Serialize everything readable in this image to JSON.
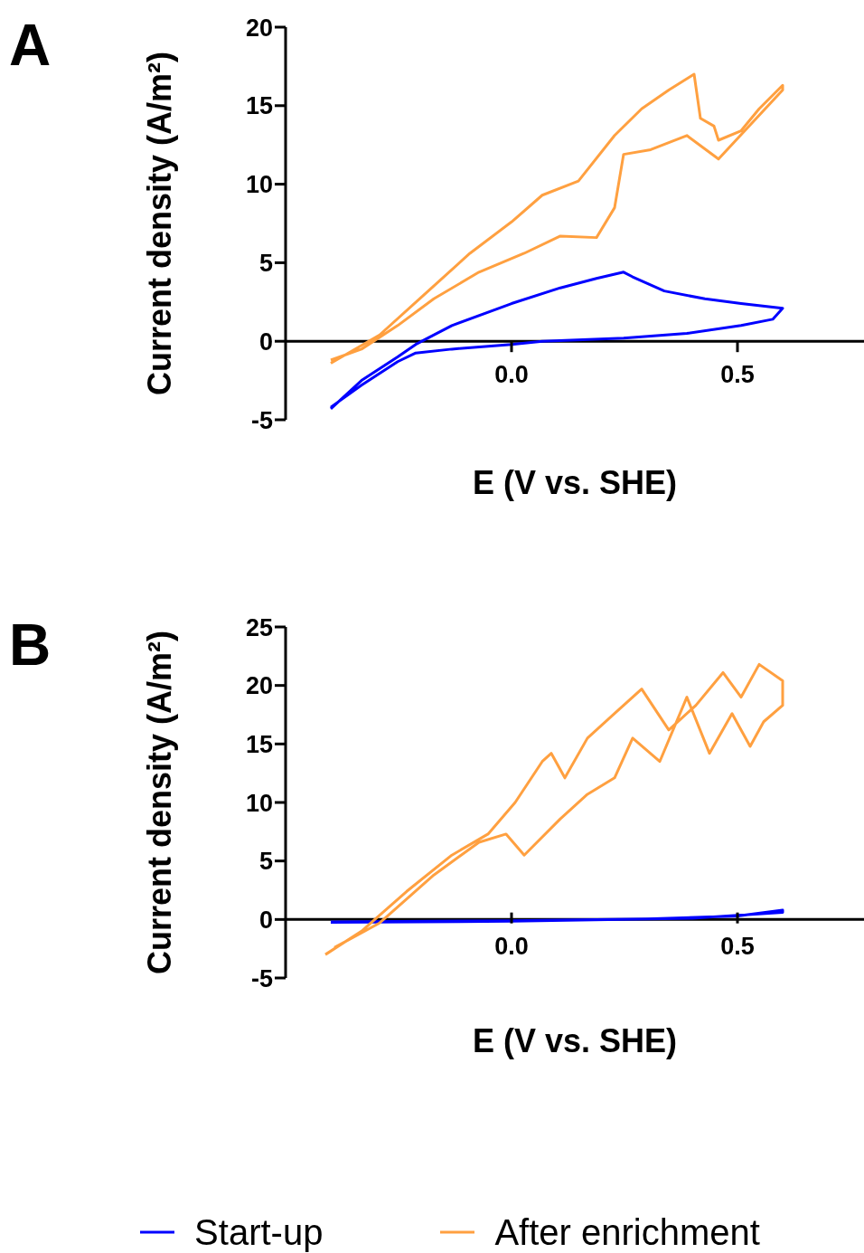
{
  "chart_data": [
    {
      "type": "line",
      "title": "A",
      "xlabel": "E (V vs. SHE)",
      "ylabel": "Current density (A/m²)",
      "xlim": [
        -0.5,
        0.78
      ],
      "xticks": [
        {
          "value": 0,
          "label": "0.0"
        },
        0.5
      ],
      "ylim": [
        -5,
        20
      ],
      "yticks": [
        -5,
        0,
        5,
        10,
        15,
        20
      ],
      "grid": false,
      "legend": false,
      "marker": "none",
      "series": [
        {
          "color": "#0000ff",
          "x": [
            -0.4,
            -0.332,
            -0.252,
            -0.212,
            -0.132,
            0,
            0.108,
            0.188,
            0.248,
            0.268,
            0.338,
            0.428,
            0.508,
            0.6,
            0.578,
            0.508,
            0.388,
            0.248,
            0.068,
            0,
            -0.132,
            -0.212,
            -0.252,
            -0.332,
            -0.4
          ],
          "values": [
            -4.3,
            -2.5,
            -1.0,
            -0.2,
            1.0,
            2.4,
            3.4,
            4.0,
            4.4,
            4.1,
            3.2,
            2.7,
            2.4,
            2.1,
            1.4,
            1.0,
            0.5,
            0.2,
            0,
            -0.2,
            -0.5,
            -0.75,
            -1.3,
            -2.8,
            -4.2
          ]
        },
        {
          "color": "#ffa040",
          "x": [
            -0.4,
            -0.292,
            -0.192,
            -0.092,
            0,
            0.068,
            0.148,
            0.228,
            0.288,
            0.348,
            0.404,
            0.418,
            0.448,
            0.458,
            0.508,
            0.548,
            0.6,
            0.6,
            0.458,
            0.388,
            0.308,
            0.248,
            0.228,
            0.188,
            0.108,
            0.028,
            -0.072,
            -0.172,
            -0.252,
            -0.332,
            -0.4
          ],
          "values": [
            -1.4,
            0.4,
            3.0,
            5.6,
            7.6,
            9.3,
            10.2,
            13.1,
            14.8,
            16.0,
            17.0,
            14.2,
            13.7,
            12.8,
            13.4,
            14.8,
            16.3,
            16.0,
            11.6,
            13.1,
            12.2,
            11.9,
            8.5,
            6.6,
            6.7,
            5.6,
            4.4,
            2.7,
            1.0,
            -0.5,
            -1.2
          ]
        }
      ]
    },
    {
      "type": "line",
      "title": "B",
      "xlabel": "E (V vs. SHE)",
      "ylabel": "Current density (A/m²)",
      "xlim": [
        -0.5,
        0.78
      ],
      "xticks": [
        {
          "value": 0,
          "label": "0.0"
        },
        0.5
      ],
      "ylim": [
        -5,
        25
      ],
      "yticks": [
        -5,
        0,
        5,
        10,
        15,
        20,
        25
      ],
      "grid": false,
      "legend": "bottom",
      "marker": "none",
      "series": [
        {
          "name": "Start-up",
          "color": "#0000ff",
          "x": [
            -0.4,
            0,
            0.3,
            0.5,
            0.6,
            0.6,
            0.4,
            0,
            -0.4
          ],
          "values": [
            -0.2,
            -0.1,
            0.05,
            0.3,
            0.8,
            0.6,
            0.1,
            -0.15,
            -0.25
          ]
        },
        {
          "name": "After enrichment",
          "color": "#ffa040",
          "x": [
            -0.412,
            -0.332,
            -0.232,
            -0.132,
            -0.052,
            0.008,
            0.068,
            0.088,
            0.118,
            0.168,
            0.228,
            0.288,
            0.348,
            0.408,
            0.468,
            0.508,
            0.548,
            0.6,
            0.6,
            0.558,
            0.528,
            0.488,
            0.438,
            0.388,
            0.328,
            0.268,
            0.228,
            0.168,
            0.108,
            0.028,
            -0.012,
            -0.072,
            -0.172,
            -0.292,
            -0.392
          ],
          "values": [
            -3.0,
            -1.0,
            2.4,
            5.5,
            7.3,
            10.0,
            13.5,
            14.2,
            12.1,
            15.5,
            17.6,
            19.7,
            16.2,
            18.3,
            21.1,
            19.0,
            21.8,
            20.4,
            18.3,
            16.9,
            14.8,
            17.6,
            14.2,
            19.0,
            13.5,
            15.5,
            12.1,
            10.7,
            8.6,
            5.5,
            7.3,
            6.6,
            3.8,
            -0.3,
            -2.4
          ]
        }
      ]
    }
  ]
}
